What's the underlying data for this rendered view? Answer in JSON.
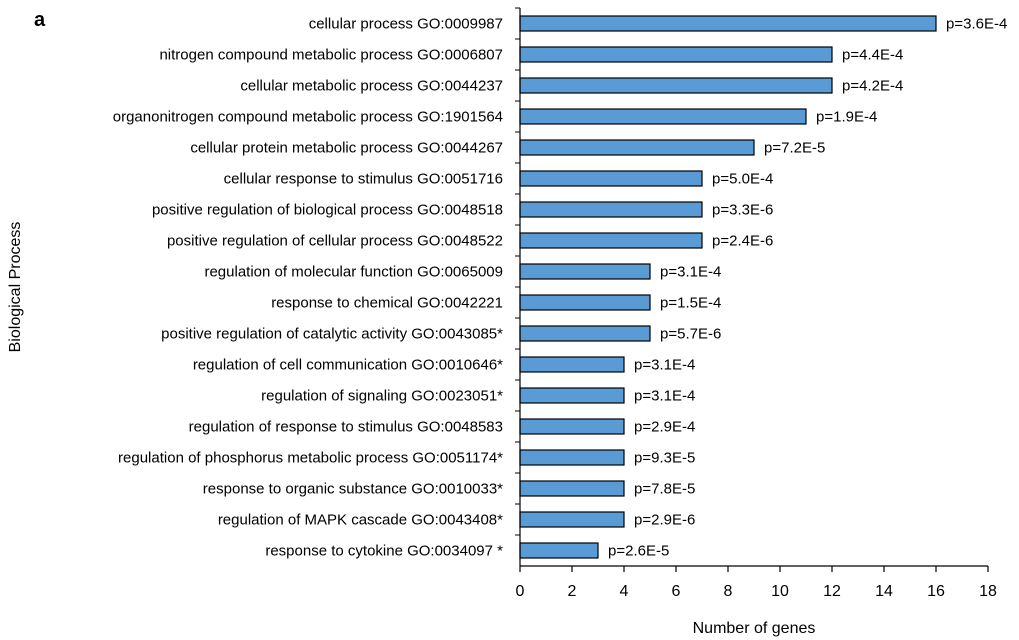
{
  "panel_label": "a",
  "colors": {
    "bar_fill": "#5b9bd5",
    "bar_stroke": "#000000",
    "axis": "#000000"
  },
  "chart_data": {
    "type": "bar",
    "orientation": "horizontal",
    "categories": [
      "cellular process GO:0009987",
      "nitrogen compound metabolic process GO:0006807",
      "cellular metabolic process GO:0044237",
      "organonitrogen compound metabolic process GO:1901564",
      "cellular protein metabolic process GO:0044267",
      "cellular response to stimulus GO:0051716",
      "positive regulation of biological process GO:0048518",
      "positive regulation of cellular process GO:0048522",
      "regulation of molecular function GO:0065009",
      "response to chemical GO:0042221",
      "positive regulation of catalytic activity GO:0043085*",
      "regulation of cell communication GO:0010646*",
      "regulation of signaling GO:0023051*",
      "regulation of response to stimulus GO:0048583",
      "regulation of phosphorus metabolic process GO:0051174*",
      "response to organic substance GO:0010033*",
      "regulation of MAPK cascade GO:0043408*",
      "response to cytokine GO:0034097 *"
    ],
    "values": [
      16,
      12,
      12,
      11,
      9,
      7,
      7,
      7,
      5,
      5,
      5,
      4,
      4,
      4,
      4,
      4,
      4,
      3
    ],
    "data_labels": [
      "p=3.6E-4",
      "p=4.4E-4",
      "p=4.2E-4",
      "p=1.9E-4",
      "p=7.2E-5",
      "p=5.0E-4",
      "p=3.3E-6",
      "p=2.4E-6",
      "p=3.1E-4",
      "p=1.5E-4",
      "p=5.7E-6",
      "p=3.1E-4",
      "p=3.1E-4",
      "p=2.9E-4",
      "p=9.3E-5",
      "p=7.8E-5",
      "p=2.9E-6",
      "p=2.6E-5"
    ],
    "xlabel": "Number of genes",
    "ylabel": "Biological Process",
    "xlim": [
      0,
      18
    ],
    "xticks": [
      0,
      2,
      4,
      6,
      8,
      10,
      12,
      14,
      16,
      18
    ],
    "grid": false,
    "legend": "none"
  }
}
